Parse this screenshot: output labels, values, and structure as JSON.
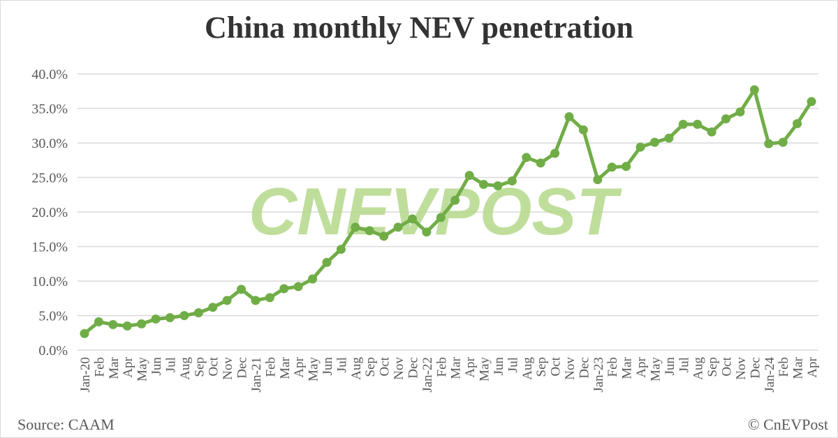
{
  "chart_data": {
    "type": "line",
    "title": "China monthly NEV penetration",
    "xlabel": "",
    "ylabel": "",
    "ylim": [
      0,
      40
    ],
    "yticks": [
      "0.0%",
      "5.0%",
      "10.0%",
      "15.0%",
      "20.0%",
      "25.0%",
      "30.0%",
      "35.0%",
      "40.0%"
    ],
    "grid": true,
    "legend": "none",
    "categories": [
      "Jan-20",
      "Feb",
      "Mar",
      "Apr",
      "May",
      "Jun",
      "Jul",
      "Aug",
      "Sep",
      "Oct",
      "Nov",
      "Dec",
      "Jan-21",
      "Feb",
      "Mar",
      "Apr",
      "May",
      "Jun",
      "Jul",
      "Aug",
      "Sep",
      "Oct",
      "Nov",
      "Dec",
      "Jan-22",
      "Feb",
      "Mar",
      "Apr",
      "May",
      "Jun",
      "Jul",
      "Aug",
      "Sep",
      "Oct",
      "Nov",
      "Dec",
      "Jan-23",
      "Feb",
      "Mar",
      "Apr",
      "May",
      "Jun",
      "Jul",
      "Aug",
      "Sep",
      "Oct",
      "Nov",
      "Dec",
      "Jan-24",
      "Feb",
      "Mar",
      "Apr"
    ],
    "series": [
      {
        "name": "NEV penetration",
        "color": "#70ad47",
        "values": [
          2.4,
          4.1,
          3.7,
          3.5,
          3.8,
          4.5,
          4.7,
          5.0,
          5.4,
          6.2,
          7.2,
          8.8,
          7.2,
          7.6,
          8.9,
          9.2,
          10.3,
          12.7,
          14.6,
          17.8,
          17.3,
          16.5,
          17.8,
          19.0,
          17.1,
          19.2,
          21.7,
          25.3,
          24.0,
          23.8,
          24.5,
          27.9,
          27.1,
          28.5,
          33.8,
          31.9,
          24.7,
          26.5,
          26.6,
          29.4,
          30.1,
          30.7,
          32.7,
          32.7,
          31.6,
          33.5,
          34.5,
          37.7,
          29.9,
          30.1,
          32.8,
          36.0
        ]
      }
    ]
  },
  "labels": {
    "title": "China monthly NEV penetration",
    "source": "Source: CAAM",
    "copyright": "© CnEVPost",
    "watermark": "CNEVPOST"
  }
}
